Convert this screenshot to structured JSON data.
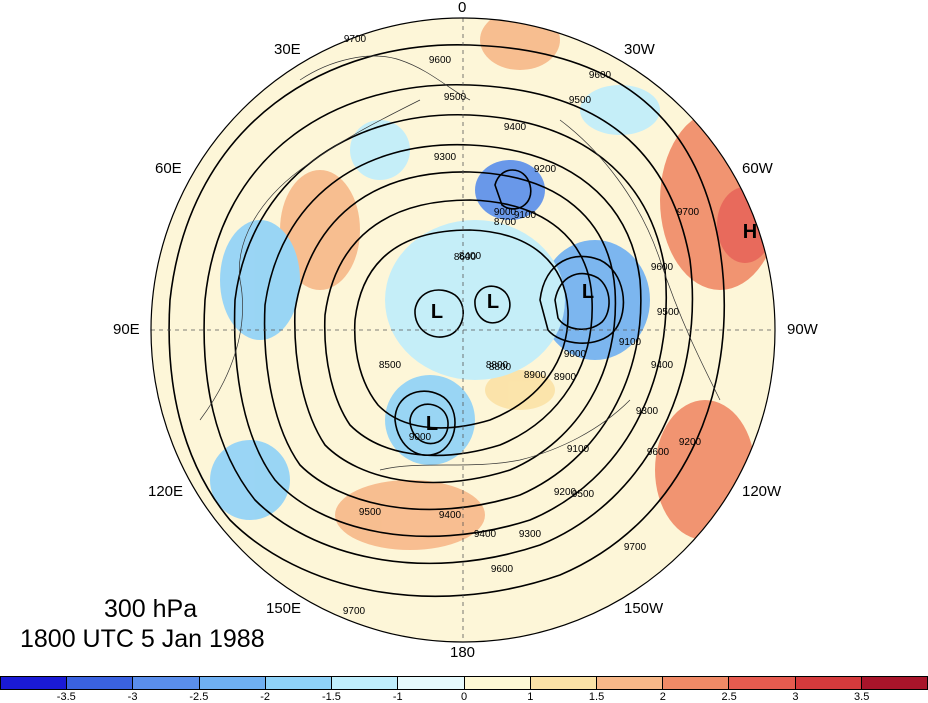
{
  "title": {
    "level": "300 hPa",
    "time": "1800 UTC 5 Jan 1988"
  },
  "longitude_labels": [
    "0",
    "30W",
    "60W",
    "90W",
    "120W",
    "150W",
    "180",
    "150E",
    "120E",
    "90E",
    "60E",
    "30E"
  ],
  "contour_labels": [
    "9700",
    "9600",
    "9600",
    "9500",
    "9500",
    "9400",
    "9300",
    "9200",
    "9100",
    "9000",
    "8900",
    "8800",
    "8700",
    "8600",
    "8500",
    "8400",
    "9700",
    "9600",
    "9500",
    "9400",
    "9300",
    "9200",
    "9100",
    "9000",
    "8900",
    "8800",
    "9700",
    "9600",
    "9500",
    "9400",
    "9300",
    "9200",
    "9100",
    "9000",
    "9700",
    "9600",
    "9500",
    "9400"
  ],
  "pressure_systems": [
    {
      "symbol": "H"
    },
    {
      "symbol": "L"
    },
    {
      "symbol": "L"
    },
    {
      "symbol": "L"
    },
    {
      "symbol": "L"
    }
  ],
  "colorbar": {
    "ticks": [
      "-3.5",
      "-3",
      "-2.5",
      "-2",
      "-1.5",
      "-1",
      "0",
      "1",
      "1.5",
      "2",
      "2.5",
      "3",
      "3.5"
    ],
    "colors": [
      "#1a1ad6",
      "#3a62e0",
      "#5a8eeb",
      "#6fb0f2",
      "#8fd2f8",
      "#bfeefc",
      "#e6fafd",
      "#fdf8d4",
      "#fbe2a6",
      "#f7b889",
      "#f08a66",
      "#e65b4f",
      "#d43a3c",
      "#a8142a"
    ]
  }
}
